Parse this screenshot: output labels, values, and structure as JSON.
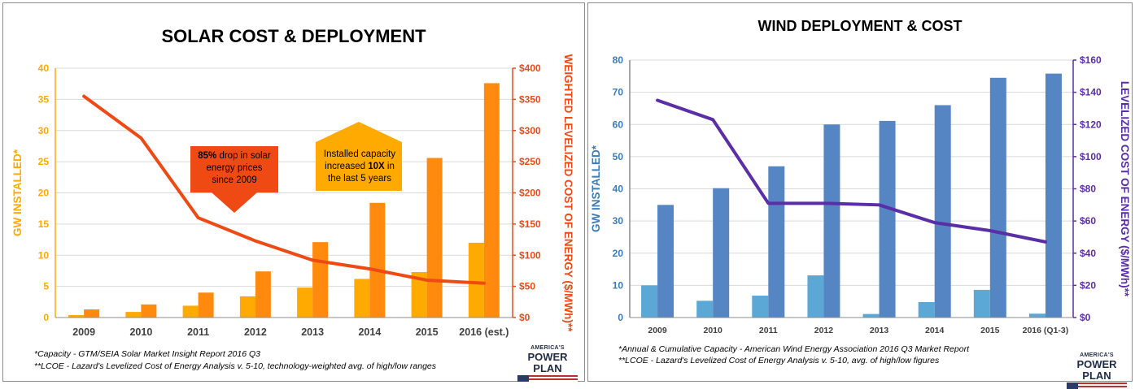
{
  "chart_data": [
    {
      "type": "bar",
      "title": "SOLAR COST & DEPLOYMENT",
      "categories": [
        "2009",
        "2010",
        "2011",
        "2012",
        "2013",
        "2014",
        "2015",
        "2016 (est.)"
      ],
      "ylabel": "GW INSTALLED*",
      "y2label": "WEIGHTED LEVELIZED COST OF ENERGY ($/MWh)**",
      "ylim": [
        0,
        40
      ],
      "y2lim": [
        0,
        400
      ],
      "yticks": [
        "0",
        "5",
        "10",
        "15",
        "20",
        "25",
        "30",
        "35",
        "40"
      ],
      "y2ticks": [
        "$0",
        "$50",
        "$100",
        "$150",
        "$200",
        "$250",
        "$300",
        "$350",
        "$400"
      ],
      "series": [
        {
          "kind": "bar",
          "color": "#ffaa00",
          "values": [
            0.4,
            0.9,
            1.9,
            3.4,
            4.8,
            6.2,
            7.3,
            12.0
          ]
        },
        {
          "kind": "bar",
          "color": "#ff8a0d",
          "values": [
            1.3,
            2.1,
            4.0,
            7.4,
            12.1,
            18.4,
            25.6,
            37.6
          ]
        },
        {
          "kind": "line",
          "axis": "right",
          "color": "#f04a14",
          "values": [
            355,
            288,
            160,
            123,
            92,
            78,
            60,
            55
          ]
        }
      ],
      "callouts": [
        {
          "lines": [
            "85% drop in solar",
            "energy prices",
            "since 2009"
          ],
          "bold": "85%",
          "color": "#f04a14"
        },
        {
          "lines": [
            "Installed capacity",
            "increased 10X in",
            "the last 5 years"
          ],
          "bold": "10X",
          "color": "#ffaa00"
        }
      ],
      "footnotes": [
        "*Capacity - GTM/SEIA Solar Market Insight Report 2016 Q3",
        "**LCOE - Lazard's Levelized Cost of Energy Analysis v. 5-10, technology-weighted avg. of high/low ranges"
      ]
    },
    {
      "type": "bar",
      "title": "WIND DEPLOYMENT & COST",
      "categories": [
        "2009",
        "2010",
        "2011",
        "2012",
        "2013",
        "2014",
        "2015",
        "2016 (Q1-3)"
      ],
      "ylabel": "GW INSTALLED*",
      "y2label": "LEVELIZED COST OF ENERGY ($/MWh)**",
      "ylim": [
        0,
        80
      ],
      "y2lim": [
        0,
        160
      ],
      "yticks": [
        "0",
        "10",
        "20",
        "30",
        "40",
        "50",
        "60",
        "70",
        "80"
      ],
      "y2ticks": [
        "$0",
        "$20",
        "$40",
        "$60",
        "$80",
        "$100",
        "$120",
        "$140",
        "$160"
      ],
      "series": [
        {
          "kind": "bar",
          "color": "#5ba8d6",
          "values": [
            10.0,
            5.2,
            6.8,
            13.1,
            1.1,
            4.8,
            8.6,
            1.2
          ]
        },
        {
          "kind": "bar",
          "color": "#5585c2",
          "values": [
            35.0,
            40.2,
            47.0,
            60.0,
            61.1,
            66.0,
            74.5,
            75.8
          ]
        },
        {
          "kind": "line",
          "axis": "right",
          "color": "#5a2ea6",
          "values": [
            135,
            123,
            71,
            71,
            70,
            59,
            54,
            47
          ]
        }
      ],
      "footnotes": [
        "*Annual & Cumulative Capacity - American Wind Energy Association 2016 Q3 Market Report",
        "**LCOE - Lazard's Levelized Cost of Energy Analysis v. 5-10, avg. of high/low figures"
      ]
    }
  ],
  "logo": {
    "line1": "AMERICA'S",
    "line2": "POWER PLAN"
  },
  "colors": {
    "solar_axis": "#ffaa00",
    "solar_axis_right": "#f04a14",
    "wind_axis": "#3d7ab8",
    "wind_axis_right": "#5a2ea6"
  }
}
